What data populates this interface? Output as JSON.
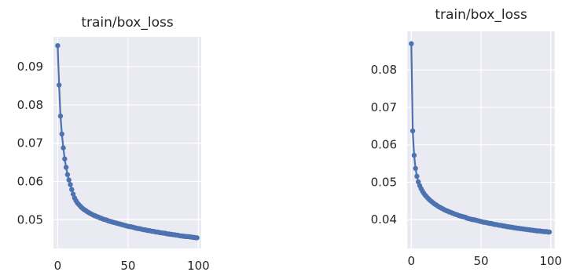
{
  "style": {
    "plot_bg": "#EAEAF2",
    "grid": "#FFFFFF",
    "series_color": "#4C72B0",
    "text": "#262626"
  },
  "chart_data": [
    {
      "type": "line",
      "title": "train/box_loss",
      "xlabel": "",
      "ylabel": "",
      "xlim": [
        -3,
        102
      ],
      "ylim": [
        0.0425,
        0.0978
      ],
      "xticks": [
        0,
        50,
        100
      ],
      "xtick_labels": [
        "0",
        "50",
        "100"
      ],
      "yticks": [
        0.05,
        0.06,
        0.07,
        0.08,
        0.09
      ],
      "ytick_labels": [
        "0.05",
        "0.06",
        "0.07",
        "0.08",
        "0.09"
      ],
      "grid": true,
      "series": [
        {
          "marker": "circle",
          "x": [
            0,
            1,
            2,
            3,
            4,
            5,
            6,
            7,
            8,
            9,
            10,
            11,
            12,
            13,
            14,
            15,
            16,
            17,
            18,
            19,
            20,
            21,
            22,
            23,
            24,
            25,
            26,
            27,
            28,
            29,
            30,
            31,
            32,
            33,
            34,
            35,
            36,
            37,
            38,
            39,
            40,
            41,
            42,
            43,
            44,
            45,
            46,
            47,
            48,
            49,
            50,
            51,
            52,
            53,
            54,
            55,
            56,
            57,
            58,
            59,
            60,
            61,
            62,
            63,
            64,
            65,
            66,
            67,
            68,
            69,
            70,
            71,
            72,
            73,
            74,
            75,
            76,
            77,
            78,
            79,
            80,
            81,
            82,
            83,
            84,
            85,
            86,
            87,
            88,
            89,
            90,
            91,
            92,
            93,
            94,
            95,
            96,
            97,
            98,
            99
          ],
          "y": [
            0.0955,
            0.0852,
            0.0771,
            0.0724,
            0.0688,
            0.0659,
            0.0637,
            0.0618,
            0.0604,
            0.0592,
            0.0579,
            0.0567,
            0.0557,
            0.055,
            0.0544,
            0.054,
            0.0536,
            0.0532,
            0.0529,
            0.0526,
            0.0524,
            0.0521,
            0.0519,
            0.0517,
            0.0515,
            0.0513,
            0.0511,
            0.051,
            0.0508,
            0.0507,
            0.0505,
            0.0504,
            0.0502,
            0.0501,
            0.05,
            0.0499,
            0.0497,
            0.0496,
            0.0495,
            0.0494,
            0.0493,
            0.0492,
            0.0491,
            0.049,
            0.0489,
            0.0488,
            0.0487,
            0.0486,
            0.0485,
            0.0484,
            0.0483,
            0.0482,
            0.0482,
            0.0481,
            0.048,
            0.0479,
            0.0478,
            0.0477,
            0.0477,
            0.0476,
            0.0475,
            0.0474,
            0.0474,
            0.0473,
            0.0472,
            0.0472,
            0.0471,
            0.047,
            0.047,
            0.0469,
            0.0468,
            0.0468,
            0.0467,
            0.0466,
            0.0466,
            0.0465,
            0.0465,
            0.0464,
            0.0463,
            0.0463,
            0.0462,
            0.0462,
            0.0461,
            0.0461,
            0.046,
            0.046,
            0.0459,
            0.0458,
            0.0458,
            0.0457,
            0.0457,
            0.0456,
            0.0456,
            0.0456,
            0.0455,
            0.0455,
            0.0454,
            0.0454,
            0.0453,
            0.0453
          ]
        }
      ]
    },
    {
      "type": "line",
      "title": "train/box_loss",
      "xlabel": "",
      "ylabel": "",
      "xlim": [
        -3,
        103
      ],
      "ylim": [
        0.0323,
        0.0903
      ],
      "xticks": [
        0,
        50,
        100
      ],
      "xtick_labels": [
        "0",
        "50",
        "100"
      ],
      "yticks": [
        0.04,
        0.05,
        0.06,
        0.07,
        0.08
      ],
      "ytick_labels": [
        "0.04",
        "0.05",
        "0.06",
        "0.07",
        "0.08"
      ],
      "grid": true,
      "series": [
        {
          "marker": "circle",
          "x": [
            0,
            1,
            2,
            3,
            4,
            5,
            6,
            7,
            8,
            9,
            10,
            11,
            12,
            13,
            14,
            15,
            16,
            17,
            18,
            19,
            20,
            21,
            22,
            23,
            24,
            25,
            26,
            27,
            28,
            29,
            30,
            31,
            32,
            33,
            34,
            35,
            36,
            37,
            38,
            39,
            40,
            41,
            42,
            43,
            44,
            45,
            46,
            47,
            48,
            49,
            50,
            51,
            52,
            53,
            54,
            55,
            56,
            57,
            58,
            59,
            60,
            61,
            62,
            63,
            64,
            65,
            66,
            67,
            68,
            69,
            70,
            71,
            72,
            73,
            74,
            75,
            76,
            77,
            78,
            79,
            80,
            81,
            82,
            83,
            84,
            85,
            86,
            87,
            88,
            89,
            90,
            91,
            92,
            93,
            94,
            95,
            96,
            97,
            98,
            99
          ],
          "y": [
            0.087,
            0.0637,
            0.0572,
            0.0537,
            0.0516,
            0.0501,
            0.0491,
            0.0483,
            0.0476,
            0.047,
            0.0465,
            0.0461,
            0.0457,
            0.0453,
            0.045,
            0.0447,
            0.0444,
            0.0441,
            0.0439,
            0.0436,
            0.0434,
            0.0432,
            0.043,
            0.0428,
            0.0426,
            0.0424,
            0.0423,
            0.0421,
            0.042,
            0.0418,
            0.0417,
            0.0415,
            0.0414,
            0.0413,
            0.0411,
            0.041,
            0.0409,
            0.0408,
            0.0407,
            0.0406,
            0.0404,
            0.0403,
            0.0402,
            0.0401,
            0.04,
            0.04,
            0.0399,
            0.0398,
            0.0397,
            0.0396,
            0.0395,
            0.0394,
            0.0393,
            0.0393,
            0.0392,
            0.0391,
            0.039,
            0.039,
            0.0389,
            0.0388,
            0.0387,
            0.0387,
            0.0386,
            0.0385,
            0.0385,
            0.0384,
            0.0383,
            0.0383,
            0.0382,
            0.0381,
            0.0381,
            0.038,
            0.038,
            0.0379,
            0.0378,
            0.0378,
            0.0377,
            0.0377,
            0.0376,
            0.0376,
            0.0375,
            0.0375,
            0.0374,
            0.0374,
            0.0373,
            0.0373,
            0.0372,
            0.0372,
            0.0371,
            0.0371,
            0.037,
            0.037,
            0.037,
            0.0369,
            0.0369,
            0.0368,
            0.0368,
            0.0368,
            0.0367,
            0.0367
          ]
        }
      ]
    }
  ]
}
